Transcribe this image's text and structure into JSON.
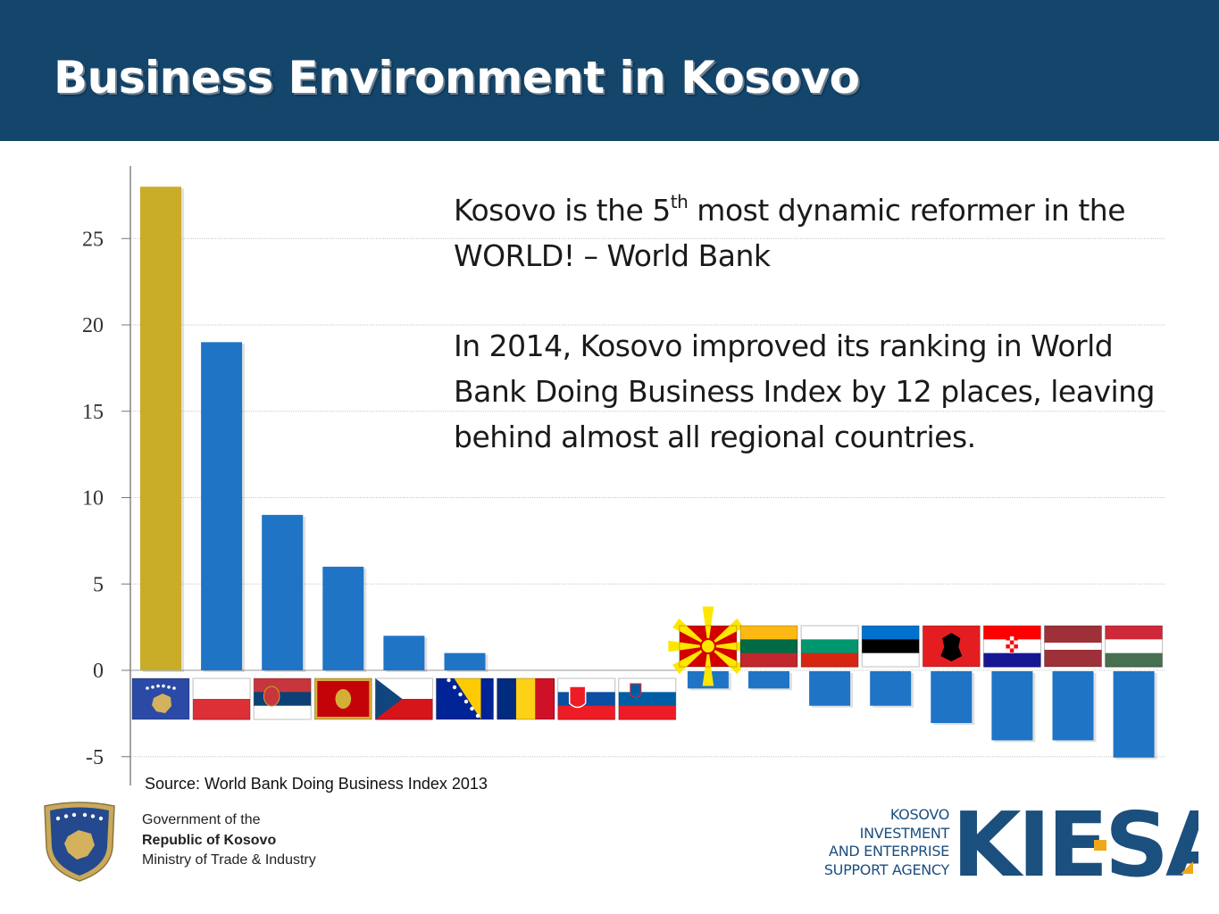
{
  "header": {
    "title": "Business Environment in Kosovo"
  },
  "callout": {
    "line1_pre": "Kosovo is the 5",
    "line1_sup": "th",
    "line1_post": " most dynamic reformer in the WORLD! – World Bank",
    "paragraph2": "In 2014, Kosovo improved its ranking in World Bank Doing Business Index by 12 places, leaving behind almost all regional countries."
  },
  "source": "Source: World Bank Doing Business Index 2013",
  "footer": {
    "gov_line1": "Government of the",
    "gov_line2": "Republic of Kosovo",
    "gov_line3": "Ministry of Trade & Industry",
    "agency_line1": "KOSOVO",
    "agency_line2": "INVESTMENT",
    "agency_line3": "AND ENTERPRISE",
    "agency_line4": "SUPPORT AGENCY",
    "agency_logo": "KIESA"
  },
  "chart_data": {
    "type": "bar",
    "categories": [
      "Kosovo",
      "Poland",
      "Serbia",
      "Montenegro",
      "Czech Republic",
      "Bosnia and Herzegovina",
      "Romania",
      "Slovakia",
      "Slovenia",
      "Macedonia",
      "Lithuania",
      "Bulgaria",
      "Estonia",
      "Albania",
      "Croatia",
      "Latvia",
      "Hungary"
    ],
    "values": [
      28,
      19,
      9,
      6,
      2,
      1,
      0,
      0,
      0,
      -1,
      -1,
      -2,
      -2,
      -3,
      -4,
      -4,
      -5
    ],
    "ylim": [
      -5,
      28
    ],
    "yticks": [
      "-5",
      "0",
      "5",
      "10",
      "15",
      "20",
      "25"
    ],
    "grid": true,
    "category_labels": "country flags",
    "colors": {
      "highlight": "#c9ac28",
      "bar": "#1f74c5",
      "grid": "#bbbbbb"
    }
  }
}
